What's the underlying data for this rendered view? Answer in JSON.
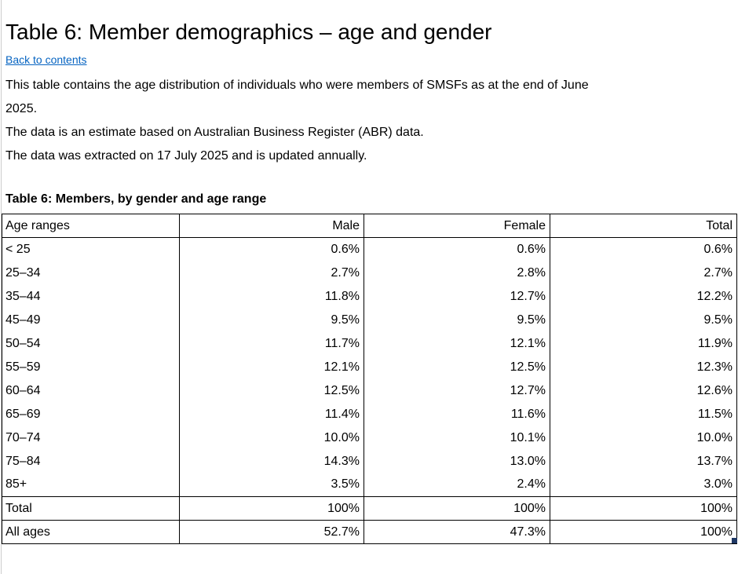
{
  "page": {
    "title": "Table 6: Member demographics – age and gender",
    "back_link": "Back to contents",
    "intro_lines": [
      "This table contains the age distribution of individuals who were members of SMSFs as at the end of June",
      "2025.",
      "The data is an estimate based on Australian Business Register (ABR) data.",
      "The data was extracted on 17 July 2025 and is updated annually."
    ],
    "table_caption": "Table 6: Members, by gender and age range"
  },
  "chart_data": {
    "type": "table",
    "title": "Table 6: Members, by gender and age range",
    "columns": [
      "Age ranges",
      "Male",
      "Female",
      "Total"
    ],
    "rows": [
      [
        "< 25",
        "0.6%",
        "0.6%",
        "0.6%"
      ],
      [
        "25–34",
        "2.7%",
        "2.8%",
        "2.7%"
      ],
      [
        "35–44",
        "11.8%",
        "12.7%",
        "12.2%"
      ],
      [
        "45–49",
        "9.5%",
        "9.5%",
        "9.5%"
      ],
      [
        "50–54",
        "11.7%",
        "12.1%",
        "11.9%"
      ],
      [
        "55–59",
        "12.1%",
        "12.5%",
        "12.3%"
      ],
      [
        "60–64",
        "12.5%",
        "12.7%",
        "12.6%"
      ],
      [
        "65–69",
        "11.4%",
        "11.6%",
        "11.5%"
      ],
      [
        "70–74",
        "10.0%",
        "10.1%",
        "10.0%"
      ],
      [
        "75–84",
        "14.3%",
        "13.0%",
        "13.7%"
      ],
      [
        "85+",
        "3.5%",
        "2.4%",
        "3.0%"
      ]
    ],
    "summary_rows": [
      [
        "Total",
        "100%",
        "100%",
        "100%"
      ],
      [
        "All ages",
        "52.7%",
        "47.3%",
        "100%"
      ]
    ]
  },
  "colors": {
    "link_blue": "#0563C1",
    "selection_handle": "#1F3864",
    "border": "#000000"
  }
}
